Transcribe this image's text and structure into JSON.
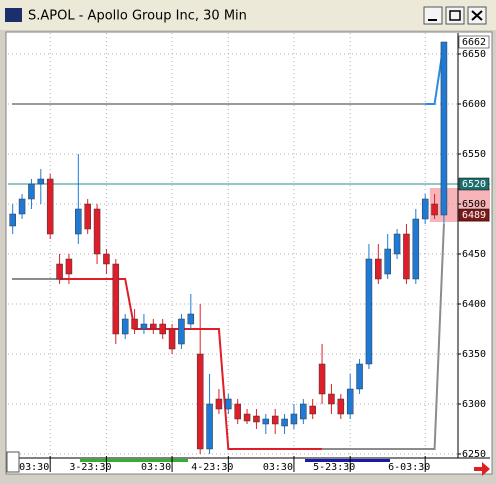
{
  "window_title": "S.APOL - Apollo Group Inc, 30 Min",
  "chart_data": {
    "type": "candlestick",
    "open": [
      6478,
      6490,
      6505,
      6520,
      6525,
      6440,
      6445,
      6470,
      6500,
      6495,
      6450,
      6440,
      6370,
      6385,
      6375,
      6380,
      6380,
      6375,
      6360,
      6380,
      6350,
      6255,
      6305,
      6295,
      6300,
      6290,
      6288,
      6280,
      6288,
      6278,
      6280,
      6285,
      6298,
      6340,
      6310,
      6305,
      6290,
      6315,
      6340,
      6445,
      6430,
      6450,
      6470,
      6425,
      6485,
      6500,
      6489
    ],
    "high": [
      6500,
      6510,
      6525,
      6535,
      6530,
      6450,
      6450,
      6550,
      6505,
      6500,
      6455,
      6445,
      6390,
      6395,
      6390,
      6385,
      6385,
      6380,
      6390,
      6410,
      6400,
      6330,
      6315,
      6310,
      6305,
      6295,
      6295,
      6290,
      6295,
      6290,
      6300,
      6305,
      6305,
      6360,
      6320,
      6310,
      6330,
      6345,
      6460,
      6460,
      6470,
      6475,
      6480,
      6495,
      6510,
      6510,
      6662
    ],
    "low": [
      6470,
      6485,
      6495,
      6500,
      6465,
      6420,
      6420,
      6460,
      6470,
      6440,
      6430,
      6360,
      6365,
      6370,
      6370,
      6370,
      6365,
      6350,
      6355,
      6375,
      6250,
      6250,
      6290,
      6290,
      6280,
      6280,
      6275,
      6270,
      6270,
      6270,
      6275,
      6280,
      6285,
      6300,
      6290,
      6285,
      6285,
      6310,
      6335,
      6420,
      6425,
      6445,
      6420,
      6420,
      6480,
      6485,
      6480
    ],
    "close": [
      6490,
      6505,
      6520,
      6525,
      6470,
      6425,
      6430,
      6495,
      6475,
      6450,
      6440,
      6370,
      6385,
      6375,
      6380,
      6375,
      6370,
      6355,
      6385,
      6390,
      6255,
      6300,
      6295,
      6305,
      6285,
      6283,
      6282,
      6285,
      6280,
      6285,
      6290,
      6300,
      6290,
      6310,
      6300,
      6290,
      6315,
      6340,
      6445,
      6425,
      6455,
      6470,
      6425,
      6485,
      6505,
      6489,
      6662
    ],
    "up_color": "#1f7ad6",
    "down_color": "#e01e2a",
    "lines": [
      {
        "color": "#8c8c8c",
        "values": [
          6425,
          6425,
          6425,
          6425,
          6425,
          6425,
          null,
          null,
          null,
          null,
          null,
          null,
          null,
          null,
          null,
          null,
          null,
          null,
          null,
          null,
          null,
          null,
          null,
          null,
          null,
          null,
          null,
          null,
          null,
          null,
          null,
          null,
          null,
          6255,
          6255,
          6255,
          6255,
          6255,
          6255,
          6255,
          6255,
          6255,
          6255,
          6255,
          6255,
          6255,
          6480
        ]
      },
      {
        "color": "#e01e2a",
        "values": [
          null,
          null,
          null,
          null,
          null,
          6425,
          6425,
          6425,
          6425,
          6425,
          6425,
          6425,
          6425,
          6375,
          6375,
          6375,
          6375,
          6375,
          6375,
          6375,
          6375,
          6375,
          6375,
          6255,
          6255,
          6255,
          6255,
          6255,
          6255,
          6255,
          6255,
          6255,
          6255,
          6255,
          null,
          null,
          null,
          null,
          null,
          null,
          null,
          null,
          null,
          null,
          null,
          null,
          null
        ]
      },
      {
        "color": "#9a9a9a",
        "values": [
          6600,
          6600,
          6600,
          6600,
          6600,
          6600,
          6600,
          6600,
          6600,
          6600,
          6600,
          6600,
          6600,
          6600,
          6600,
          6600,
          6600,
          6600,
          6600,
          6600,
          6600,
          6600,
          6600,
          6600,
          6600,
          6600,
          6600,
          6600,
          6600,
          6600,
          6600,
          6600,
          6600,
          6600,
          6600,
          6600,
          6600,
          6600,
          6600,
          6600,
          6600,
          6600,
          6600,
          6600,
          6600,
          null,
          null
        ]
      },
      {
        "color": "#2a8be0",
        "values": [
          null,
          null,
          null,
          null,
          null,
          null,
          null,
          null,
          null,
          null,
          null,
          null,
          null,
          null,
          null,
          null,
          null,
          null,
          null,
          null,
          null,
          null,
          null,
          null,
          null,
          null,
          null,
          null,
          null,
          null,
          null,
          null,
          null,
          null,
          null,
          null,
          null,
          null,
          null,
          null,
          null,
          null,
          null,
          null,
          6600,
          6600,
          6662
        ]
      }
    ],
    "level": 6520,
    "level_color": "#2a8c8c",
    "band": [
      6482,
      6516
    ],
    "band_color": "#f5a3a8",
    "markers": [
      6662,
      6520,
      6489
    ],
    "marker_colors": [
      "#ffffff",
      "#1d6f6f",
      "#7a1a1a"
    ],
    "ylim": [
      6248,
      6671
    ],
    "yticks": [
      6650,
      6600,
      6550,
      6500,
      6450,
      6400,
      6350,
      6300,
      6250
    ],
    "xlim": [
      -0.5,
      47.5
    ],
    "xticks": [
      {
        "value": 4,
        "label": "03:30"
      },
      {
        "value": 10,
        "label": "3-23:30"
      },
      {
        "value": 17,
        "label": "03:30"
      },
      {
        "value": 23,
        "label": "4-23:30"
      },
      {
        "value": 30,
        "label": "03:30"
      },
      {
        "value": 36,
        "label": "5-23:30"
      },
      {
        "value": 44,
        "label": "6-03:30"
      }
    ],
    "grid": true
  }
}
